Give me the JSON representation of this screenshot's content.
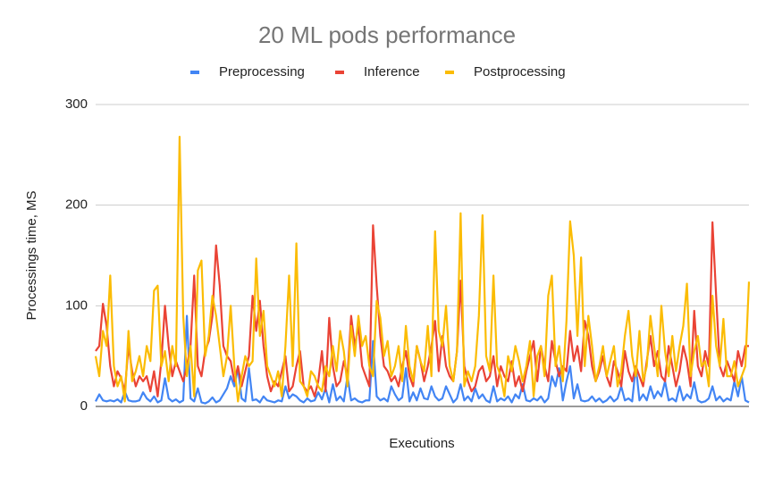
{
  "chart_data": {
    "type": "line",
    "title": "20 ML pods performance",
    "x_label": "Executions",
    "y_label": "Processings time, MS",
    "ylim": [
      0,
      300
    ],
    "yticks": [
      0,
      100,
      200,
      300
    ],
    "grid": true,
    "legend": "top",
    "series": [
      {
        "name": "Preprocessing",
        "color": "#4285f4",
        "values": [
          5,
          12,
          6,
          5,
          6,
          5,
          7,
          4,
          15,
          6,
          5,
          5,
          6,
          14,
          8,
          5,
          10,
          4,
          6,
          28,
          8,
          5,
          7,
          4,
          6,
          90,
          8,
          5,
          18,
          4,
          3,
          5,
          9,
          4,
          6,
          12,
          18,
          30,
          20,
          38,
          8,
          5,
          38,
          6,
          7,
          4,
          10,
          6,
          5,
          4,
          6,
          5,
          20,
          8,
          12,
          10,
          6,
          4,
          8,
          5,
          6,
          14,
          7,
          18,
          4,
          22,
          6,
          10,
          5,
          30,
          6,
          8,
          5,
          4,
          6,
          6,
          65,
          10,
          6,
          8,
          5,
          20,
          12,
          6,
          9,
          38,
          5,
          14,
          6,
          18,
          8,
          7,
          20,
          10,
          6,
          8,
          20,
          12,
          4,
          8,
          22,
          6,
          10,
          5,
          18,
          8,
          12,
          6,
          4,
          20,
          5,
          8,
          6,
          10,
          4,
          12,
          8,
          22,
          6,
          5,
          8,
          6,
          10,
          4,
          8,
          30,
          20,
          38,
          6,
          25,
          40,
          8,
          22,
          6,
          5,
          6,
          10,
          5,
          8,
          4,
          6,
          10,
          5,
          8,
          20,
          6,
          8,
          5,
          40,
          6,
          12,
          6,
          20,
          8,
          15,
          10,
          25,
          6,
          8,
          5,
          20,
          6,
          12,
          8,
          24,
          6,
          4,
          5,
          8,
          20,
          6,
          10,
          5,
          8,
          6,
          25,
          10,
          30,
          6,
          4
        ]
      },
      {
        "name": "Inference",
        "color": "#ea4335",
        "values": [
          55,
          60,
          102,
          80,
          40,
          20,
          35,
          28,
          15,
          60,
          35,
          20,
          30,
          25,
          30,
          15,
          35,
          10,
          45,
          100,
          60,
          30,
          45,
          35,
          25,
          40,
          60,
          130,
          40,
          30,
          55,
          65,
          90,
          160,
          120,
          60,
          50,
          45,
          25,
          40,
          20,
          35,
          50,
          110,
          75,
          105,
          60,
          30,
          15,
          25,
          20,
          35,
          50,
          15,
          20,
          40,
          55,
          20,
          15,
          20,
          10,
          25,
          55,
          15,
          88,
          40,
          20,
          25,
          45,
          30,
          90,
          60,
          80,
          40,
          30,
          20,
          180,
          120,
          70,
          40,
          35,
          25,
          30,
          20,
          40,
          55,
          30,
          20,
          60,
          45,
          25,
          40,
          60,
          85,
          35,
          70,
          40,
          30,
          25,
          55,
          125,
          40,
          25,
          15,
          20,
          35,
          40,
          25,
          30,
          50,
          20,
          40,
          30,
          25,
          45,
          20,
          30,
          15,
          35,
          50,
          65,
          25,
          60,
          40,
          25,
          65,
          45,
          30,
          40,
          35,
          75,
          45,
          60,
          35,
          85,
          70,
          40,
          25,
          35,
          50,
          30,
          20,
          45,
          35,
          20,
          55,
          35,
          25,
          40,
          30,
          20,
          45,
          70,
          40,
          55,
          30,
          25,
          60,
          40,
          20,
          35,
          60,
          45,
          20,
          95,
          40,
          30,
          55,
          40,
          183,
          110,
          40,
          30,
          45,
          35,
          25,
          55,
          40,
          60,
          60
        ]
      },
      {
        "name": "Postprocessing",
        "color": "#fbbc04",
        "values": [
          50,
          30,
          75,
          60,
          130,
          40,
          20,
          30,
          5,
          75,
          25,
          35,
          50,
          30,
          60,
          45,
          115,
          120,
          40,
          55,
          25,
          60,
          40,
          268,
          90,
          30,
          60,
          10,
          135,
          145,
          50,
          70,
          110,
          90,
          60,
          30,
          50,
          100,
          40,
          5,
          30,
          50,
          40,
          45,
          147,
          70,
          95,
          40,
          30,
          20,
          35,
          10,
          60,
          130,
          40,
          162,
          25,
          20,
          10,
          35,
          30,
          20,
          15,
          40,
          30,
          60,
          35,
          75,
          55,
          20,
          80,
          50,
          90,
          60,
          70,
          40,
          30,
          105,
          88,
          50,
          65,
          30,
          40,
          60,
          25,
          80,
          40,
          25,
          60,
          45,
          35,
          80,
          30,
          174,
          75,
          60,
          100,
          40,
          25,
          55,
          192,
          20,
          35,
          25,
          40,
          90,
          190,
          50,
          35,
          130,
          40,
          30,
          10,
          50,
          35,
          60,
          45,
          25,
          40,
          65,
          10,
          50,
          60,
          30,
          110,
          130,
          40,
          60,
          25,
          85,
          184,
          150,
          70,
          148,
          40,
          90,
          60,
          25,
          40,
          60,
          30,
          45,
          60,
          20,
          35,
          70,
          95,
          50,
          30,
          75,
          25,
          40,
          90,
          60,
          30,
          100,
          55,
          30,
          70,
          35,
          60,
          80,
          122,
          30,
          55,
          70,
          40,
          45,
          20,
          110,
          60,
          40,
          87,
          30,
          30,
          45,
          20,
          30,
          40,
          124
        ]
      }
    ]
  }
}
